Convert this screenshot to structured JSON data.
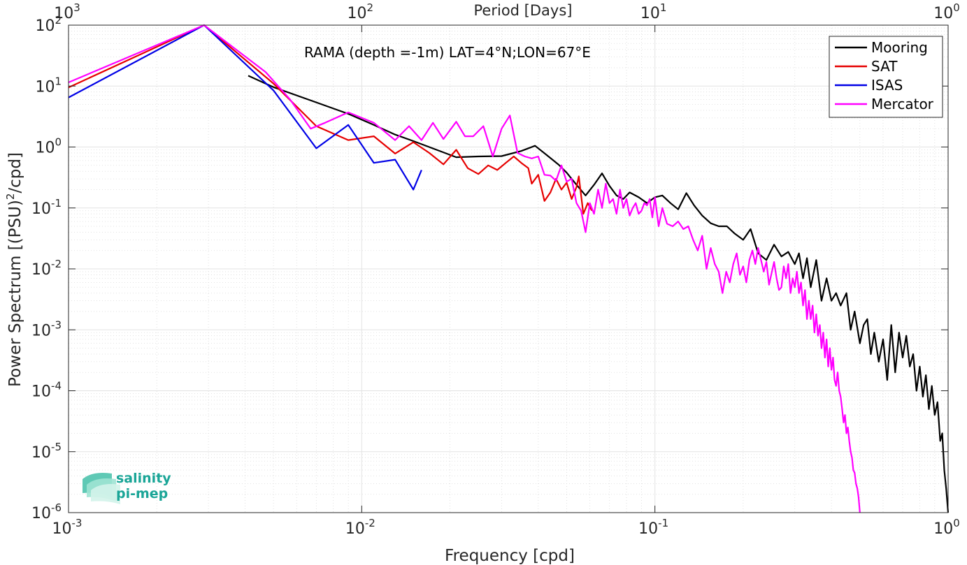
{
  "chart_data": {
    "type": "line",
    "x_scale": "log",
    "y_scale": "log",
    "xlim": [
      0.001,
      1
    ],
    "ylim": [
      1e-06,
      100
    ],
    "xlabel": "Frequency [cpd]",
    "ylabel": "Power Spectrum [(PSU)²/cpd]",
    "ylabel_parts": {
      "before": "Power Spectrum [(PSU)",
      "sup": "2",
      "after": "/cpd]"
    },
    "top_xlabel": "Period [Days]",
    "top_xlim": [
      1000,
      1
    ],
    "annotation": "RAMA (depth =-1m) LAT=4°N;LON=67°E",
    "grid": true,
    "minor_grid": true,
    "legend_position": "top-right",
    "x_ticks": [
      {
        "value": 0.001,
        "base": "10",
        "exp": "-3"
      },
      {
        "value": 0.01,
        "base": "10",
        "exp": "-2"
      },
      {
        "value": 0.1,
        "base": "10",
        "exp": "-1"
      },
      {
        "value": 1,
        "base": "10",
        "exp": "0"
      }
    ],
    "top_x_ticks": [
      {
        "value": 0.001,
        "base": "10",
        "exp": "3"
      },
      {
        "value": 0.01,
        "base": "10",
        "exp": "2"
      },
      {
        "value": 0.1,
        "base": "10",
        "exp": "1"
      },
      {
        "value": 1,
        "base": "10",
        "exp": "0"
      }
    ],
    "y_ticks": [
      {
        "value": 100,
        "base": "10",
        "exp": "2"
      },
      {
        "value": 10,
        "base": "10",
        "exp": "1"
      },
      {
        "value": 1,
        "base": "10",
        "exp": "0"
      },
      {
        "value": 0.1,
        "base": "10",
        "exp": "-1"
      },
      {
        "value": 0.01,
        "base": "10",
        "exp": "-2"
      },
      {
        "value": 0.001,
        "base": "10",
        "exp": "-3"
      },
      {
        "value": 0.0001,
        "base": "10",
        "exp": "-4"
      },
      {
        "value": 1e-05,
        "base": "10",
        "exp": "-5"
      },
      {
        "value": 1e-06,
        "base": "10",
        "exp": "-6"
      }
    ],
    "series": [
      {
        "name": "Mooring",
        "color": "#000000",
        "points": [
          [
            0.0041,
            14.8
          ],
          [
            0.005,
            9.6
          ],
          [
            0.007,
            5.4
          ],
          [
            0.009,
            3.5
          ],
          [
            0.011,
            2.3
          ],
          [
            0.013,
            1.6
          ],
          [
            0.015,
            1.25
          ],
          [
            0.018,
            0.9
          ],
          [
            0.021,
            0.68
          ],
          [
            0.025,
            0.7
          ],
          [
            0.03,
            0.71
          ],
          [
            0.035,
            0.86
          ],
          [
            0.039,
            1.05
          ],
          [
            0.043,
            0.72
          ],
          [
            0.047,
            0.51
          ],
          [
            0.05,
            0.38
          ],
          [
            0.054,
            0.24
          ],
          [
            0.058,
            0.16
          ],
          [
            0.062,
            0.24
          ],
          [
            0.066,
            0.37
          ],
          [
            0.07,
            0.23
          ],
          [
            0.074,
            0.16
          ],
          [
            0.078,
            0.14
          ],
          [
            0.082,
            0.18
          ],
          [
            0.088,
            0.15
          ],
          [
            0.094,
            0.12
          ],
          [
            0.1,
            0.15
          ],
          [
            0.106,
            0.16
          ],
          [
            0.113,
            0.12
          ],
          [
            0.12,
            0.095
          ],
          [
            0.128,
            0.175
          ],
          [
            0.136,
            0.11
          ],
          [
            0.145,
            0.075
          ],
          [
            0.155,
            0.056
          ],
          [
            0.165,
            0.05
          ],
          [
            0.176,
            0.05
          ],
          [
            0.187,
            0.038
          ],
          [
            0.2,
            0.03
          ],
          [
            0.212,
            0.045
          ],
          [
            0.225,
            0.018
          ],
          [
            0.24,
            0.014
          ],
          [
            0.255,
            0.025
          ],
          [
            0.27,
            0.016
          ],
          [
            0.285,
            0.019
          ],
          [
            0.3,
            0.012
          ],
          [
            0.31,
            0.018
          ],
          [
            0.32,
            0.007
          ],
          [
            0.33,
            0.015
          ],
          [
            0.34,
            0.005
          ],
          [
            0.355,
            0.014
          ],
          [
            0.37,
            0.003
          ],
          [
            0.385,
            0.007
          ],
          [
            0.4,
            0.003
          ],
          [
            0.415,
            0.004
          ],
          [
            0.43,
            0.0025
          ],
          [
            0.45,
            0.004
          ],
          [
            0.465,
            0.001
          ],
          [
            0.48,
            0.002
          ],
          [
            0.5,
            0.0006
          ],
          [
            0.515,
            0.0012
          ],
          [
            0.53,
            0.0015
          ],
          [
            0.545,
            0.0004
          ],
          [
            0.56,
            0.0009
          ],
          [
            0.58,
            0.0003
          ],
          [
            0.6,
            0.0007
          ],
          [
            0.62,
            0.00015
          ],
          [
            0.64,
            0.0012
          ],
          [
            0.66,
            0.0002
          ],
          [
            0.68,
            0.0009
          ],
          [
            0.7,
            0.00035
          ],
          [
            0.72,
            0.0008
          ],
          [
            0.74,
            0.00025
          ],
          [
            0.76,
            0.0004
          ],
          [
            0.78,
            0.0001
          ],
          [
            0.8,
            0.00025
          ],
          [
            0.82,
            8e-05
          ],
          [
            0.84,
            0.00018
          ],
          [
            0.86,
            5e-05
          ],
          [
            0.88,
            0.00012
          ],
          [
            0.9,
            4e-05
          ],
          [
            0.92,
            6.5e-05
          ],
          [
            0.94,
            1.5e-05
          ],
          [
            0.955,
            2e-05
          ],
          [
            0.97,
            5e-06
          ],
          [
            0.985,
            2.5e-06
          ],
          [
            1.0,
            1e-06
          ]
        ]
      },
      {
        "name": "SAT",
        "color": "#e60000",
        "points": [
          [
            0.001,
            9.5
          ],
          [
            0.0029,
            100
          ],
          [
            0.005,
            11
          ],
          [
            0.007,
            2.2
          ],
          [
            0.009,
            1.3
          ],
          [
            0.011,
            1.5
          ],
          [
            0.013,
            0.78
          ],
          [
            0.015,
            1.2
          ],
          [
            0.017,
            0.8
          ],
          [
            0.019,
            0.52
          ],
          [
            0.021,
            0.9
          ],
          [
            0.023,
            0.45
          ],
          [
            0.025,
            0.36
          ],
          [
            0.027,
            0.5
          ],
          [
            0.029,
            0.42
          ],
          [
            0.031,
            0.55
          ],
          [
            0.033,
            0.7
          ],
          [
            0.035,
            0.55
          ],
          [
            0.037,
            0.45
          ],
          [
            0.038,
            0.25
          ],
          [
            0.04,
            0.35
          ],
          [
            0.042,
            0.13
          ],
          [
            0.044,
            0.18
          ],
          [
            0.046,
            0.3
          ],
          [
            0.048,
            0.2
          ],
          [
            0.05,
            0.26
          ],
          [
            0.052,
            0.14
          ],
          [
            0.054,
            0.22
          ],
          [
            0.055,
            0.33
          ],
          [
            0.057,
            0.08
          ],
          [
            0.059,
            0.12
          ],
          [
            0.061,
            0.09
          ]
        ]
      },
      {
        "name": "ISAS",
        "color": "#0000e6",
        "points": [
          [
            0.001,
            6.5
          ],
          [
            0.0029,
            100
          ],
          [
            0.005,
            8.5
          ],
          [
            0.007,
            0.95
          ],
          [
            0.009,
            2.3
          ],
          [
            0.011,
            0.55
          ],
          [
            0.013,
            0.62
          ],
          [
            0.015,
            0.2
          ],
          [
            0.016,
            0.42
          ]
        ]
      },
      {
        "name": "Mercator",
        "color": "#ff00ff",
        "points": [
          [
            0.001,
            11.5
          ],
          [
            0.0029,
            100
          ],
          [
            0.0047,
            17
          ],
          [
            0.0057,
            6
          ],
          [
            0.0067,
            2
          ],
          [
            0.0075,
            2.5
          ],
          [
            0.009,
            3.7
          ],
          [
            0.011,
            2.5
          ],
          [
            0.013,
            1.3
          ],
          [
            0.0145,
            2.2
          ],
          [
            0.016,
            1.3
          ],
          [
            0.0175,
            2.5
          ],
          [
            0.019,
            1.35
          ],
          [
            0.021,
            2.6
          ],
          [
            0.0225,
            1.5
          ],
          [
            0.024,
            1.5
          ],
          [
            0.026,
            2.2
          ],
          [
            0.028,
            0.7
          ],
          [
            0.03,
            2
          ],
          [
            0.032,
            3.3
          ],
          [
            0.034,
            0.8
          ],
          [
            0.036,
            0.7
          ],
          [
            0.038,
            0.65
          ],
          [
            0.04,
            0.7
          ],
          [
            0.042,
            0.35
          ],
          [
            0.044,
            0.34
          ],
          [
            0.046,
            0.28
          ],
          [
            0.048,
            0.5
          ],
          [
            0.05,
            0.27
          ],
          [
            0.052,
            0.3
          ],
          [
            0.054,
            0.12
          ],
          [
            0.056,
            0.09
          ],
          [
            0.058,
            0.04
          ],
          [
            0.06,
            0.12
          ],
          [
            0.062,
            0.08
          ],
          [
            0.064,
            0.2
          ],
          [
            0.066,
            0.1
          ],
          [
            0.068,
            0.25
          ],
          [
            0.07,
            0.12
          ],
          [
            0.072,
            0.14
          ],
          [
            0.074,
            0.08
          ],
          [
            0.076,
            0.2
          ],
          [
            0.078,
            0.1
          ],
          [
            0.08,
            0.14
          ],
          [
            0.082,
            0.075
          ],
          [
            0.084,
            0.1
          ],
          [
            0.086,
            0.12
          ],
          [
            0.088,
            0.08
          ],
          [
            0.09,
            0.09
          ],
          [
            0.092,
            0.12
          ],
          [
            0.094,
            0.11
          ],
          [
            0.096,
            0.14
          ],
          [
            0.098,
            0.07
          ],
          [
            0.1,
            0.15
          ],
          [
            0.103,
            0.05
          ],
          [
            0.106,
            0.1
          ],
          [
            0.11,
            0.055
          ],
          [
            0.115,
            0.05
          ],
          [
            0.12,
            0.06
          ],
          [
            0.125,
            0.045
          ],
          [
            0.13,
            0.05
          ],
          [
            0.135,
            0.03
          ],
          [
            0.14,
            0.02
          ],
          [
            0.145,
            0.035
          ],
          [
            0.15,
            0.01
          ],
          [
            0.155,
            0.022
          ],
          [
            0.16,
            0.012
          ],
          [
            0.165,
            0.009
          ],
          [
            0.17,
            0.004
          ],
          [
            0.175,
            0.009
          ],
          [
            0.18,
            0.006
          ],
          [
            0.185,
            0.012
          ],
          [
            0.19,
            0.018
          ],
          [
            0.195,
            0.008
          ],
          [
            0.2,
            0.011
          ],
          [
            0.205,
            0.006
          ],
          [
            0.21,
            0.014
          ],
          [
            0.215,
            0.02
          ],
          [
            0.22,
            0.012
          ],
          [
            0.225,
            0.022
          ],
          [
            0.23,
            0.014
          ],
          [
            0.235,
            0.009
          ],
          [
            0.24,
            0.013
          ],
          [
            0.245,
            0.0055
          ],
          [
            0.25,
            0.0085
          ],
          [
            0.255,
            0.013
          ],
          [
            0.26,
            0.007
          ],
          [
            0.265,
            0.0045
          ],
          [
            0.27,
            0.005
          ],
          [
            0.275,
            0.011
          ],
          [
            0.28,
            0.007
          ],
          [
            0.285,
            0.012
          ],
          [
            0.29,
            0.004
          ],
          [
            0.295,
            0.007
          ],
          [
            0.3,
            0.005
          ],
          [
            0.305,
            0.009
          ],
          [
            0.31,
            0.004
          ],
          [
            0.315,
            0.006
          ],
          [
            0.32,
            0.0025
          ],
          [
            0.325,
            0.0045
          ],
          [
            0.33,
            0.0015
          ],
          [
            0.335,
            0.003
          ],
          [
            0.34,
            0.0015
          ],
          [
            0.345,
            0.0025
          ],
          [
            0.35,
            0.0009
          ],
          [
            0.355,
            0.0018
          ],
          [
            0.36,
            0.0008
          ],
          [
            0.365,
            0.0012
          ],
          [
            0.37,
            0.0005
          ],
          [
            0.375,
            0.0009
          ],
          [
            0.38,
            0.00035
          ],
          [
            0.385,
            0.0007
          ],
          [
            0.39,
            0.00025
          ],
          [
            0.395,
            0.0005
          ],
          [
            0.4,
            0.00022
          ],
          [
            0.405,
            0.00035
          ],
          [
            0.41,
            0.00015
          ],
          [
            0.415,
            0.00012
          ],
          [
            0.42,
            0.0002
          ],
          [
            0.425,
            0.0001
          ],
          [
            0.43,
            8e-05
          ],
          [
            0.435,
            5e-05
          ],
          [
            0.44,
            3e-05
          ],
          [
            0.445,
            4e-05
          ],
          [
            0.45,
            2e-05
          ],
          [
            0.455,
            2.5e-05
          ],
          [
            0.46,
            1.5e-05
          ],
          [
            0.465,
            1e-05
          ],
          [
            0.47,
            8e-06
          ],
          [
            0.475,
            5e-06
          ],
          [
            0.48,
            4.5e-06
          ],
          [
            0.485,
            3e-06
          ],
          [
            0.49,
            2.5e-06
          ],
          [
            0.495,
            1.8e-06
          ],
          [
            0.5,
            1e-06
          ]
        ]
      }
    ]
  },
  "logo": {
    "line1": "salinity",
    "line2": "pi-mep"
  }
}
